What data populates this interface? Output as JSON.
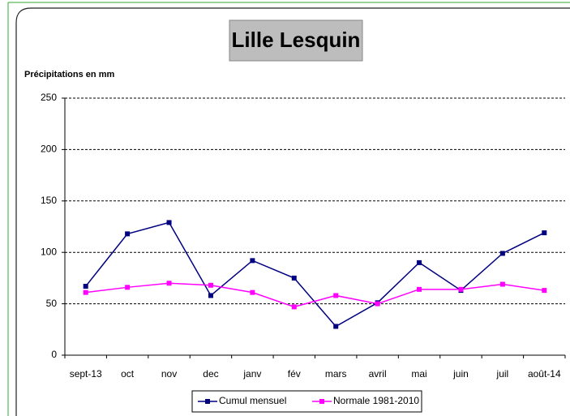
{
  "chart_data": {
    "type": "line",
    "title": "Lille Lesquin",
    "y_label": "Précipitations en mm",
    "categories": [
      "sept-13",
      "oct",
      "nov",
      "dec",
      "janv",
      "fév",
      "mars",
      "avril",
      "mai",
      "juin",
      "juil",
      "août-14"
    ],
    "series": [
      {
        "name": "Cumul mensuel",
        "color": "#000080",
        "values": [
          67,
          118,
          129,
          58,
          92,
          75,
          28,
          51,
          90,
          63,
          99,
          119
        ]
      },
      {
        "name": "Normale 1981-2010",
        "color": "#ff00ff",
        "values": [
          61,
          66,
          70,
          68,
          61,
          47,
          58,
          50,
          64,
          64,
          69,
          63
        ]
      }
    ],
    "ylim": [
      0,
      250
    ],
    "yticks": [
      0,
      50,
      100,
      150,
      200,
      250
    ],
    "grid": true,
    "legend": "bottom"
  }
}
